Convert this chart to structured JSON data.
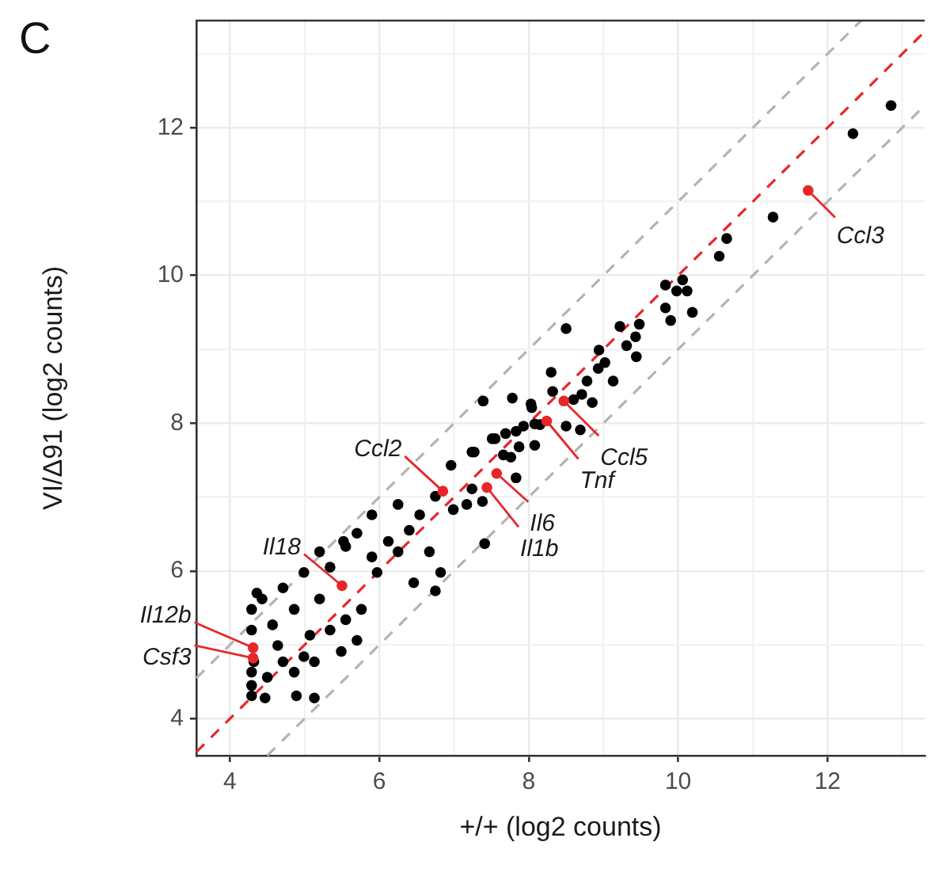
{
  "chart_data": {
    "type": "scatter",
    "xlabel": "+/+ (log2 counts)",
    "ylabel": "VI/Δ91 (log2 counts)",
    "xlim": [
      3.55,
      13.3
    ],
    "ylim": [
      3.5,
      13.45
    ],
    "xticks": [
      4,
      {
        "value": 5,
        "label": null
      },
      6,
      {
        "value": 7,
        "label": null
      },
      8,
      {
        "value": 9,
        "label": null
      },
      10,
      {
        "value": 11,
        "label": null
      },
      12,
      {
        "value": 13,
        "label": null
      }
    ],
    "yticks": [
      4,
      {
        "value": 5,
        "label": null
      },
      6,
      {
        "value": 7,
        "label": null
      },
      8,
      {
        "value": 9,
        "label": null
      },
      10,
      {
        "value": 11,
        "label": null
      },
      12,
      {
        "value": 13,
        "label": null
      }
    ],
    "grid": true,
    "legend": false,
    "marker": "circle",
    "series": [
      {
        "type": "line",
        "color": "#b3b3b3",
        "line_style": "dashed",
        "marker": "none",
        "x": [
          3.55,
          12.45
        ],
        "values": [
          4.55,
          13.45
        ]
      },
      {
        "type": "line",
        "color": "#b3b3b3",
        "line_style": "dashed",
        "marker": "none",
        "x": [
          4.5,
          13.3
        ],
        "values": [
          3.5,
          12.3
        ]
      },
      {
        "type": "line",
        "color": "#e8262a",
        "line_style": "dashed",
        "marker": "none",
        "x": [
          3.55,
          13.3
        ],
        "values": [
          3.55,
          13.3
        ]
      },
      {
        "color": "#000000",
        "x": [
          12.85,
          12.34,
          11.27,
          10.65,
          10.55,
          9.83,
          10.06,
          9.98,
          10.12,
          9.83,
          9.9,
          10.19,
          8.5,
          9.22,
          9.48,
          9.43,
          9.31,
          9.44,
          8.94,
          9.02,
          8.93,
          9.13,
          8.78,
          8.3,
          8.71,
          8.85,
          8.6,
          8.32,
          7.78,
          7.39,
          8.03,
          8.15,
          8.5,
          8.69,
          7.93,
          7.69,
          7.51,
          7.87,
          8.08,
          7.76,
          7.24,
          8.04,
          6.96,
          7.27,
          7.66,
          7.83,
          8.08,
          7.55,
          7.83,
          7.17,
          7.38,
          6.75,
          6.99,
          7.41,
          7.24,
          6.54,
          6.25,
          5.9,
          6.4,
          6.12,
          5.7,
          5.55,
          5.9,
          6.25,
          6.67,
          6.82,
          6.46,
          6.75,
          5.97,
          5.76,
          5.34,
          5.2,
          4.99,
          4.71,
          4.86,
          5.2,
          5.55,
          5.34,
          5.07,
          5.7,
          5.49,
          4.99,
          4.71,
          4.57,
          4.43,
          4.36,
          4.5,
          4.86,
          5.13,
          4.89,
          5.13,
          4.47,
          4.29,
          4.29,
          4.29,
          4.29,
          4.29,
          4.32,
          4.64,
          5.52
        ],
        "values": [
          12.3,
          11.92,
          10.79,
          10.5,
          10.26,
          9.87,
          9.94,
          9.79,
          9.79,
          9.56,
          9.39,
          9.5,
          9.28,
          9.31,
          9.34,
          9.17,
          9.05,
          8.9,
          8.99,
          8.82,
          8.74,
          8.57,
          8.57,
          8.69,
          8.39,
          8.28,
          8.32,
          8.43,
          8.34,
          8.3,
          8.26,
          7.98,
          7.96,
          7.91,
          7.96,
          7.86,
          7.79,
          7.68,
          7.7,
          7.54,
          7.61,
          8.21,
          7.43,
          7.61,
          7.57,
          7.89,
          7.99,
          7.79,
          7.26,
          6.9,
          6.94,
          7.01,
          6.83,
          6.37,
          7.11,
          6.76,
          6.9,
          6.76,
          6.55,
          6.4,
          6.51,
          6.33,
          6.19,
          6.26,
          6.26,
          5.98,
          5.84,
          5.73,
          5.98,
          5.48,
          6.05,
          6.26,
          5.98,
          5.77,
          5.48,
          5.62,
          5.34,
          5.2,
          5.13,
          5.06,
          4.91,
          4.84,
          4.77,
          5.27,
          5.62,
          5.7,
          4.56,
          4.63,
          4.77,
          4.31,
          4.28,
          4.28,
          4.31,
          5.48,
          5.2,
          4.63,
          4.45,
          4.77,
          4.99,
          6.4
        ]
      },
      {
        "color": "#e8262a",
        "x": [
          11.74,
          8.47,
          8.24,
          7.57,
          7.44,
          6.85,
          5.5,
          4.31,
          4.31
        ],
        "values": [
          11.15,
          8.3,
          8.03,
          7.32,
          7.13,
          7.08,
          5.8,
          4.96,
          4.82
        ]
      }
    ],
    "annotations": [
      "C",
      {
        "text": "Ccl3",
        "x": 11.74,
        "y": 11.15
      },
      {
        "text": "Ccl5",
        "x": 8.47,
        "y": 8.3
      },
      {
        "text": "Tnf",
        "x": 8.24,
        "y": 8.03
      },
      {
        "text": "Il6",
        "x": 7.57,
        "y": 7.32
      },
      {
        "text": "Il1b",
        "x": 7.44,
        "y": 7.13
      },
      {
        "text": "Ccl2",
        "x": 6.85,
        "y": 7.08
      },
      {
        "text": "Il18",
        "x": 5.5,
        "y": 5.8
      },
      {
        "text": "Il12b",
        "x": 4.31,
        "y": 4.96
      },
      {
        "text": "Csf3",
        "x": 4.31,
        "y": 4.82
      }
    ]
  }
}
